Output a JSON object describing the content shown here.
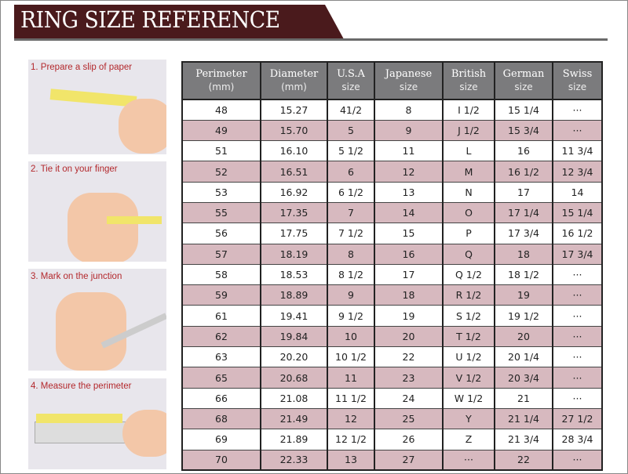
{
  "title": "RING SIZE REFERENCE",
  "steps": [
    "1. Prepare a slip of paper",
    "2. Tie it on your finger",
    "3. Mark on the junction",
    "4. Measure the perimeter"
  ],
  "colors": {
    "banner": "#4a1a1c",
    "header": "#7b7b7d",
    "alt_row": "#d7b9bf",
    "step_text": "#b3282c"
  },
  "table": {
    "headers": [
      [
        "Perimeter",
        "(mm)"
      ],
      [
        "Diameter",
        "(mm)"
      ],
      [
        "U.S.A",
        "size"
      ],
      [
        "Japanese",
        "size"
      ],
      [
        "British",
        "size"
      ],
      [
        "German",
        "size"
      ],
      [
        "Swiss",
        "size"
      ]
    ],
    "rows": [
      [
        "48",
        "15.27",
        "41/2",
        "8",
        "I 1/2",
        "15 1/4",
        "···"
      ],
      [
        "49",
        "15.70",
        "5",
        "9",
        "J 1/2",
        "15 3/4",
        "···"
      ],
      [
        "51",
        "16.10",
        "5 1/2",
        "11",
        "L",
        "16",
        "11 3/4"
      ],
      [
        "52",
        "16.51",
        "6",
        "12",
        "M",
        "16 1/2",
        "12 3/4"
      ],
      [
        "53",
        "16.92",
        "6 1/2",
        "13",
        "N",
        "17",
        "14"
      ],
      [
        "55",
        "17.35",
        "7",
        "14",
        "O",
        "17 1/4",
        "15 1/4"
      ],
      [
        "56",
        "17.75",
        "7 1/2",
        "15",
        "P",
        "17 3/4",
        "16 1/2"
      ],
      [
        "57",
        "18.19",
        "8",
        "16",
        "Q",
        "18",
        "17 3/4"
      ],
      [
        "58",
        "18.53",
        "8 1/2",
        "17",
        "Q  1/2",
        "18 1/2",
        "···"
      ],
      [
        "59",
        "18.89",
        "9",
        "18",
        "R 1/2",
        "19",
        "···"
      ],
      [
        "61",
        "19.41",
        "9 1/2",
        "19",
        "S 1/2",
        "19 1/2",
        "···"
      ],
      [
        "62",
        "19.84",
        "10",
        "20",
        "T 1/2",
        "20",
        "···"
      ],
      [
        "63",
        "20.20",
        "10 1/2",
        "22",
        "U 1/2",
        "20 1/4",
        "···"
      ],
      [
        "65",
        "20.68",
        "11",
        "23",
        "V 1/2",
        "20 3/4",
        "···"
      ],
      [
        "66",
        "21.08",
        "11 1/2",
        "24",
        "W 1/2",
        "21",
        "···"
      ],
      [
        "68",
        "21.49",
        "12",
        "25",
        "Y",
        "21 1/4",
        "27 1/2"
      ],
      [
        "69",
        "21.89",
        "12 1/2",
        "26",
        "Z",
        "21 3/4",
        "28 3/4"
      ],
      [
        "70",
        "22.33",
        "13",
        "27",
        "···",
        "22",
        "···"
      ]
    ]
  }
}
